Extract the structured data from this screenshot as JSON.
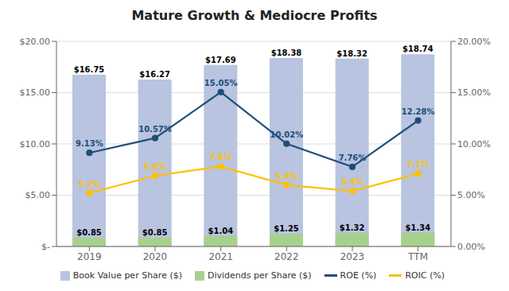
{
  "chart_data": {
    "type": "bar",
    "title": "Mature Growth & Mediocre Profits",
    "categories": [
      "2019",
      "2020",
      "2021",
      "2022",
      "2023",
      "TTM"
    ],
    "series": [
      {
        "name": "Book Value per Share ($)",
        "type": "bar",
        "color": "#b8c4e0",
        "values": [
          16.75,
          16.27,
          17.69,
          18.38,
          18.32,
          18.74
        ],
        "value_labels": [
          "$16.75",
          "$16.27",
          "$17.69",
          "$18.38",
          "$18.32",
          "$18.74"
        ]
      },
      {
        "name": "Dividends per Share ($)",
        "type": "bar",
        "color": "#a8d08d",
        "values": [
          0.85,
          0.85,
          1.04,
          1.25,
          1.32,
          1.34
        ],
        "value_labels": [
          "$0.85",
          "$0.85",
          "$1.04",
          "$1.25",
          "$1.32",
          "$1.34"
        ]
      },
      {
        "name": "ROE (%)",
        "type": "line",
        "axis": "y2",
        "color": "#1f4e79",
        "marker": "circle",
        "values": [
          9.13,
          10.57,
          15.05,
          10.02,
          7.76,
          12.28
        ],
        "value_labels": [
          "9.13%",
          "10.57%",
          "15.05%",
          "10.02%",
          "7.76%",
          "12.28%"
        ]
      },
      {
        "name": "ROIC (%)",
        "type": "line",
        "axis": "y2",
        "color": "#ffc000",
        "marker": "circle",
        "values": [
          5.2,
          6.9,
          7.8,
          6.0,
          5.4,
          7.1
        ],
        "value_labels": [
          "5.2%",
          "6.9%",
          "7.8%",
          "6.0%",
          "5.4%",
          "7.1%"
        ]
      }
    ],
    "ylim": [
      0,
      20
    ],
    "yticks": [
      {
        "value": 0,
        "label": "$-"
      },
      {
        "value": 5,
        "label": "$5.00"
      },
      {
        "value": 10,
        "label": "$10.00"
      },
      {
        "value": 15,
        "label": "$15.00"
      },
      {
        "value": 20,
        "label": "$20.00"
      }
    ],
    "y2lim": [
      0,
      20
    ],
    "y2ticks": [
      {
        "value": 0,
        "label": "0.00%"
      },
      {
        "value": 5,
        "label": "5.00%"
      },
      {
        "value": 10,
        "label": "10.00%"
      },
      {
        "value": 15,
        "label": "15.00%"
      },
      {
        "value": 20,
        "label": "20.00%"
      }
    ],
    "grid": true,
    "legend": "bottom",
    "data_labels": true
  }
}
